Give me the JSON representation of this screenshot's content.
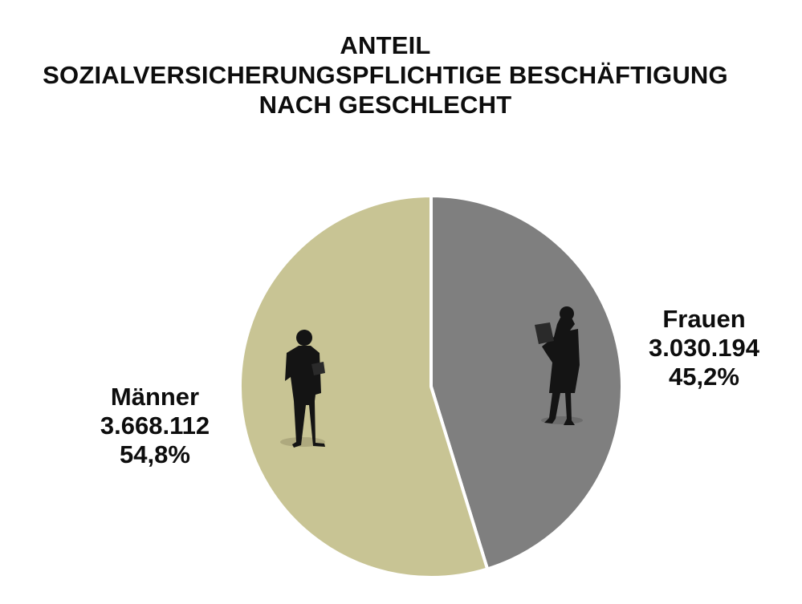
{
  "title_lines": [
    "ANTEIL",
    "SOZIALVERSICHERUNGSPFLICHTIGE BESCHÄFTIGUNG",
    "NACH GESCHLECHT"
  ],
  "chart_data": {
    "type": "pie",
    "title": "ANTEIL SOZIALVERSICHERUNGSPFLICHTIGE BESCHÄFTIGUNG NACH GESCHLECHT",
    "slices": [
      {
        "name": "Frauen",
        "value": 3030194,
        "value_label": "3.030.194",
        "percent": 45.2,
        "percent_label": "45,2%",
        "color": "#7f7f7f",
        "icon": "businesswoman-silhouette-icon"
      },
      {
        "name": "Männer",
        "value": 3668112,
        "value_label": "3.668.112",
        "percent": 54.8,
        "percent_label": "54,8%",
        "color": "#c8c494",
        "icon": "businessman-silhouette-icon"
      }
    ],
    "start": "12 o'clock, clockwise",
    "legend": "none (direct labels)"
  }
}
